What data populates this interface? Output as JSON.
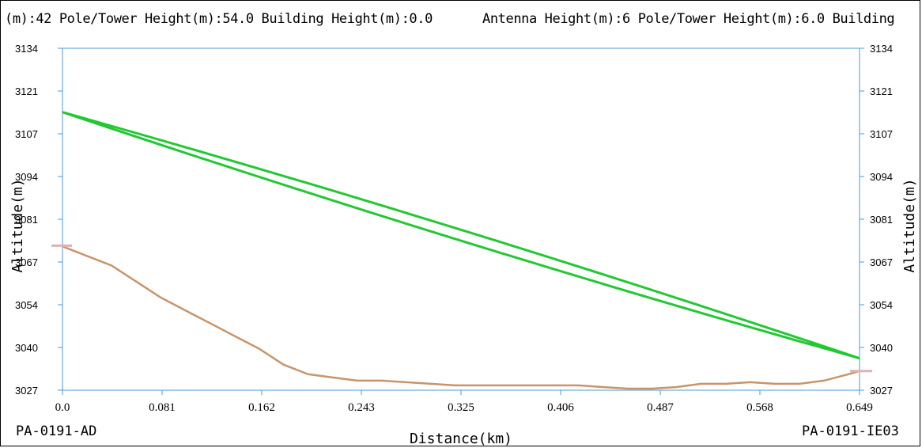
{
  "header": {
    "left": "(m):42 Pole/Tower Height(m):54.0 Building Height(m):0.0",
    "right": "Antenna Height(m):6 Pole/Tower Height(m):6.0 Building"
  },
  "sites": {
    "left": "PA-0191-AD",
    "right": "PA-0191-IE03"
  },
  "chart_data": {
    "type": "line",
    "title": "",
    "xlabel": "Distance(km)",
    "ylabel": "Altitude(m)",
    "ylabel_right": "Altitude(m)",
    "xlim": [
      0.0,
      0.649
    ],
    "ylim": [
      3027,
      3134
    ],
    "x_ticks": [
      "0.0",
      "0.081",
      "0.162",
      "0.243",
      "0.325",
      "0.406",
      "0.487",
      "0.568",
      "0.649"
    ],
    "y_ticks": [
      "3027",
      "3040",
      "3054",
      "3067",
      "3081",
      "3094",
      "3107",
      "3121",
      "3134"
    ],
    "grid": false,
    "colors": {
      "terrain": "#c8956a",
      "link": "#22c832",
      "endpoint": "#e0b0b8"
    },
    "series": [
      {
        "x": [
          0.0,
          0.02,
          0.04,
          0.06,
          0.08,
          0.1,
          0.12,
          0.14,
          0.16,
          0.18,
          0.2,
          0.22,
          0.24,
          0.26,
          0.28,
          0.3,
          0.32,
          0.34,
          0.36,
          0.38,
          0.4,
          0.42,
          0.44,
          0.46,
          0.48,
          0.5,
          0.52,
          0.54,
          0.56,
          0.58,
          0.6,
          0.62,
          0.64,
          0.649
        ],
        "values": [
          3072,
          3069,
          3066,
          3061,
          3056,
          3052,
          3048,
          3044,
          3040,
          3035,
          3032,
          3031,
          3030,
          3030,
          3029.5,
          3029,
          3028.5,
          3028.5,
          3028.5,
          3028.5,
          3028.5,
          3028.5,
          3028,
          3027.5,
          3027.5,
          3028,
          3029,
          3029,
          3029.5,
          3029,
          3029,
          3030,
          3032,
          3033
        ]
      },
      {
        "x": [
          0.0,
          0.649
        ],
        "values": [
          3114,
          3037
        ]
      },
      {
        "x": [
          0.0,
          0.649
        ],
        "values": [
          3114,
          3037
        ]
      }
    ]
  }
}
